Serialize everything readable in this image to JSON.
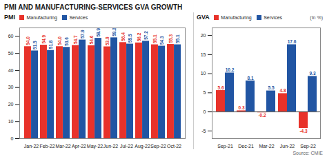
{
  "title": "PMI AND MANUFACTURING-SERVICES GVA GROWTH",
  "annotations": [
    "Source: CMIE"
  ],
  "chart_data": [
    {
      "type": "bar",
      "title": "PMI",
      "categories": [
        "Jan-22",
        "Feb-22",
        "Mar-22",
        "Apr-22",
        "May-22",
        "Jun-22",
        "Jul-22",
        "Aug-22",
        "Sep-22",
        "Oct-22"
      ],
      "series": [
        {
          "name": "Manufacturing",
          "color": "#e8322a",
          "values": [
            54.0,
            54.9,
            54.0,
            54.7,
            54.6,
            53.9,
            56.4,
            56.2,
            55.1,
            55.3
          ],
          "value_labels": [
            "54.0",
            "54.9",
            "54.0",
            "54.7",
            "54.6",
            "53.9",
            "56.4",
            "56.2",
            "55.1",
            "55.3"
          ]
        },
        {
          "name": "Services",
          "color": "#2155a3",
          "values": [
            51.5,
            51.8,
            53.6,
            57.9,
            58.9,
            59.2,
            55.5,
            57.2,
            54.3,
            55.1
          ]
        }
      ],
      "ylim": [
        0,
        65
      ],
      "yticks": [
        0,
        10,
        20,
        30,
        40,
        50,
        60
      ],
      "grid": false,
      "legend": "upper left",
      "data_labels": true
    },
    {
      "type": "bar",
      "title": "GVA",
      "ylabel": "(In %)",
      "categories": [
        "Sep-21",
        "Dec-21",
        "Mar-22",
        "Jun-22",
        "Sep-22"
      ],
      "series": [
        {
          "name": "Manufacturing",
          "color": "#e8322a",
          "values": [
            5.6,
            0.3,
            -0.2,
            4.8,
            -4.3
          ]
        },
        {
          "name": "Services",
          "color": "#2155a3",
          "values": [
            10.2,
            8.1,
            5.5,
            17.6,
            9.3
          ]
        }
      ],
      "ylim": [
        -7,
        22
      ],
      "yticks": [
        -5,
        0,
        5,
        10,
        15,
        20
      ],
      "grid": false,
      "legend": "upper left",
      "data_labels": true
    }
  ]
}
